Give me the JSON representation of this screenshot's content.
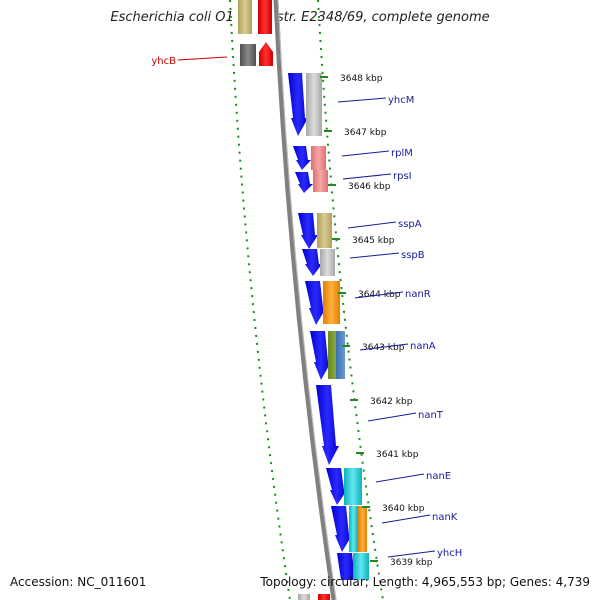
{
  "title": "Escherichia coli O127:H6 str. E2348/69, complete genome",
  "footer": {
    "accession": "Accession: NC_011601",
    "topology": "Topology: circular; Length: 4,965,553 bp; Genes: 4,739"
  },
  "colors": {
    "plus_strand_gene": "#0000ee",
    "minus_strand_marker": "#ee0000",
    "label_blue": "#1a1a9a",
    "label_red": "#cc0000",
    "dotted_track": "#1f8a1f",
    "backbone": "#808080"
  },
  "tick_labels": [
    "3648 kbp",
    "3647 kbp",
    "3646 kbp",
    "3645 kbp",
    "3644 kbp",
    "3643 kbp",
    "3642 kbp",
    "3641 kbp",
    "3640 kbp",
    "3639 kbp"
  ],
  "genes": [
    {
      "name": "yhcB",
      "color": "#cc0000"
    },
    {
      "name": "yhcM",
      "color": "#1a1a9a"
    },
    {
      "name": "rplM",
      "color": "#1a1a9a"
    },
    {
      "name": "rpsI",
      "color": "#1a1a9a"
    },
    {
      "name": "sspA",
      "color": "#1a1a9a"
    },
    {
      "name": "sspB",
      "color": "#1a1a9a"
    },
    {
      "name": "nanR",
      "color": "#1a1a9a"
    },
    {
      "name": "nanA",
      "color": "#1a1a9a"
    },
    {
      "name": "nanT",
      "color": "#1a1a9a"
    },
    {
      "name": "nanE",
      "color": "#1a1a9a"
    },
    {
      "name": "nanK",
      "color": "#1a1a9a"
    },
    {
      "name": "yhcH",
      "color": "#1a1a9a"
    }
  ]
}
